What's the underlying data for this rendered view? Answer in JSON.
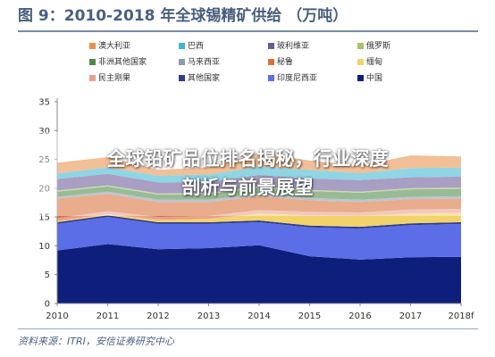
{
  "header": {
    "title": "图 9：2010-2018 年全球锡精矿供给 （万吨）"
  },
  "source": "资料来源：ITRI，安信证券研究中心",
  "overlay": {
    "line1": "全球铅矿品位排名揭秘，行业深度",
    "line2": "剖析与前景展望"
  },
  "chart_data": {
    "type": "area",
    "stacked": true,
    "title": "",
    "xlabel": "",
    "ylabel": "",
    "categories": [
      "2010",
      "2011",
      "2012",
      "2013",
      "2014",
      "2015",
      "2016",
      "2017",
      "2018f"
    ],
    "ylim": [
      0,
      35
    ],
    "yticks": [
      0,
      5,
      10,
      15,
      20,
      25,
      30,
      35
    ],
    "grid": false,
    "legend_position": "top",
    "series": [
      {
        "name": "中国",
        "color": "#0d1f7a",
        "values": [
          9.2,
          10.3,
          9.4,
          9.6,
          10.1,
          8.2,
          7.6,
          8.0,
          8.1
        ]
      },
      {
        "name": "印度尼西亚",
        "color": "#5b6ee8",
        "values": [
          4.6,
          4.7,
          4.4,
          4.2,
          4.0,
          5.0,
          5.4,
          5.6,
          5.7
        ]
      },
      {
        "name": "其他国家",
        "color": "#2f3d8c",
        "values": [
          0.3,
          0.3,
          0.3,
          0.3,
          0.3,
          0.3,
          0.3,
          0.3,
          0.3
        ]
      },
      {
        "name": "缅甸",
        "color": "#f2d36b",
        "values": [
          0.2,
          0.2,
          0.4,
          0.6,
          1.2,
          1.8,
          1.9,
          1.7,
          1.6
        ]
      },
      {
        "name": "民主刚果",
        "color": "#e8a090",
        "values": [
          0.5,
          0.5,
          0.5,
          0.5,
          0.6,
          0.6,
          0.6,
          0.7,
          0.7
        ]
      },
      {
        "name": "秘鲁",
        "color": "#d9703a",
        "values": [
          3.4,
          3.0,
          2.6,
          2.4,
          2.4,
          2.0,
          1.8,
          1.8,
          1.8
        ]
      },
      {
        "name": "马来西亚",
        "color": "#8c9cb0",
        "values": [
          0.3,
          0.4,
          0.4,
          0.4,
          0.4,
          0.4,
          0.4,
          0.4,
          0.4
        ]
      },
      {
        "name": "非洲其他国家",
        "color": "#4e8a4a",
        "values": [
          0.9,
          0.9,
          0.9,
          1.0,
          1.1,
          1.2,
          1.2,
          1.3,
          1.3
        ]
      },
      {
        "name": "俄罗斯",
        "color": "#a3c26a",
        "values": [
          0.2,
          0.2,
          0.2,
          0.2,
          0.2,
          0.2,
          0.2,
          0.2,
          0.2
        ]
      },
      {
        "name": "玻利维亚",
        "color": "#6a5a96",
        "values": [
          2.0,
          2.0,
          1.9,
          1.9,
          2.0,
          2.0,
          2.0,
          1.9,
          1.9
        ]
      },
      {
        "name": "巴西",
        "color": "#3fb7d0",
        "values": [
          1.0,
          1.1,
          1.2,
          1.3,
          1.4,
          1.5,
          1.2,
          1.6,
          1.6
        ]
      },
      {
        "name": "澳大利亚",
        "color": "#e8924a",
        "values": [
          1.8,
          1.8,
          1.0,
          1.2,
          2.4,
          1.6,
          1.3,
          2.2,
          1.9
        ]
      }
    ],
    "legend_order": [
      "澳大利亚",
      "巴西",
      "玻利维亚",
      "俄罗斯",
      "非洲其他国家",
      "马来西亚",
      "秘鲁",
      "缅甸",
      "民主刚果",
      "其他国家",
      "印度尼西亚",
      "中国"
    ]
  }
}
